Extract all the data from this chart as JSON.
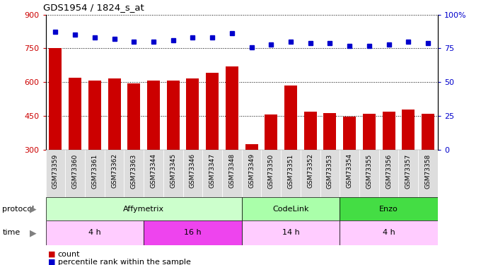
{
  "title": "GDS1954 / 1824_s_at",
  "samples": [
    "GSM73359",
    "GSM73360",
    "GSM73361",
    "GSM73362",
    "GSM73363",
    "GSM73344",
    "GSM73345",
    "GSM73346",
    "GSM73347",
    "GSM73348",
    "GSM73349",
    "GSM73350",
    "GSM73351",
    "GSM73352",
    "GSM73353",
    "GSM73354",
    "GSM73355",
    "GSM73356",
    "GSM73357",
    "GSM73358"
  ],
  "counts": [
    750,
    620,
    608,
    615,
    595,
    607,
    607,
    615,
    640,
    670,
    325,
    457,
    585,
    470,
    462,
    448,
    460,
    470,
    478,
    460
  ],
  "percentiles": [
    87,
    85,
    83,
    82,
    80,
    80,
    81,
    83,
    83,
    86,
    76,
    78,
    80,
    79,
    79,
    77,
    77,
    78,
    80,
    79
  ],
  "ylim_left": [
    300,
    900
  ],
  "ylim_right": [
    0,
    100
  ],
  "yticks_left": [
    300,
    450,
    600,
    750,
    900
  ],
  "yticks_right": [
    0,
    25,
    50,
    75,
    100
  ],
  "bar_color": "#cc0000",
  "dot_color": "#0000cc",
  "protocol_groups": [
    {
      "label": "Affymetrix",
      "start": 0,
      "end": 10,
      "color": "#ccffcc"
    },
    {
      "label": "CodeLink",
      "start": 10,
      "end": 15,
      "color": "#aaffaa"
    },
    {
      "label": "Enzo",
      "start": 15,
      "end": 20,
      "color": "#44dd44"
    }
  ],
  "time_groups": [
    {
      "label": "4 h",
      "start": 0,
      "end": 5,
      "color": "#ffccff"
    },
    {
      "label": "16 h",
      "start": 5,
      "end": 10,
      "color": "#ee44ee"
    },
    {
      "label": "14 h",
      "start": 10,
      "end": 15,
      "color": "#ffccff"
    },
    {
      "label": "4 h",
      "start": 15,
      "end": 20,
      "color": "#ffccff"
    }
  ],
  "legend_count_label": "count",
  "legend_pct_label": "percentile rank within the sample",
  "xtick_bg": "#dddddd",
  "protocol_label": "protocol",
  "time_label": "time"
}
